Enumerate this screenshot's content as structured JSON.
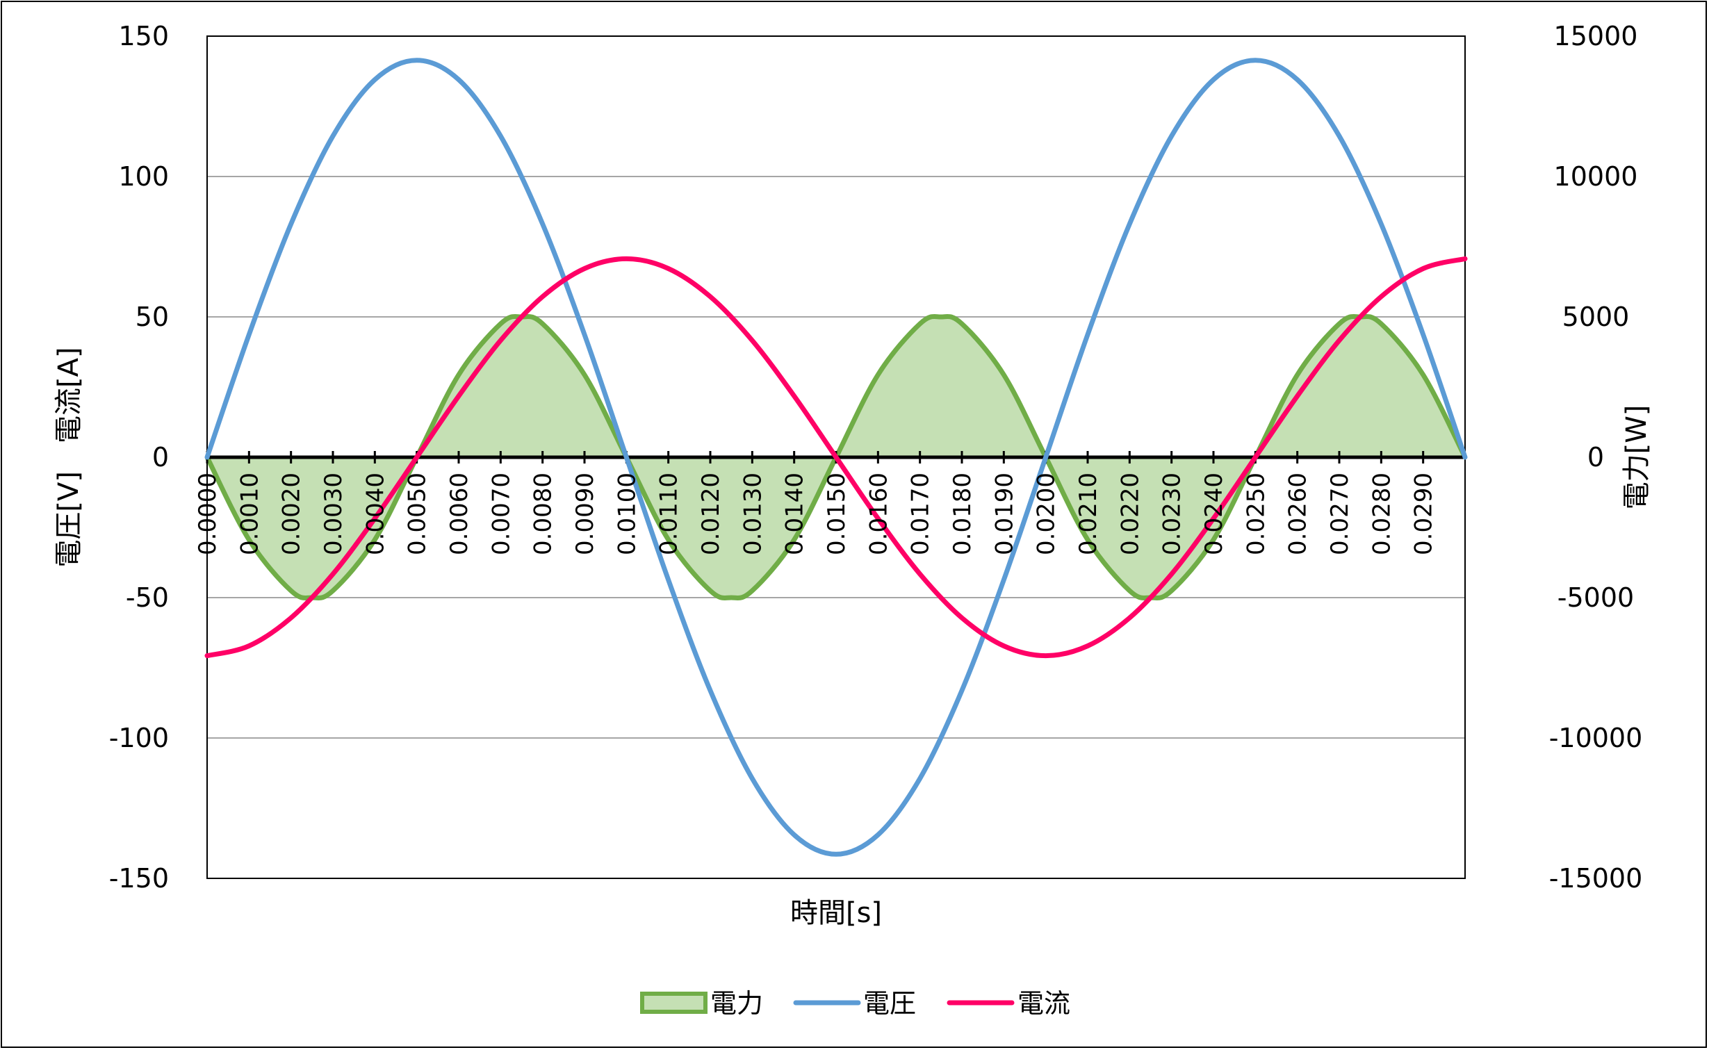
{
  "chart_data": {
    "type": "line",
    "xlabel": "時間[s]",
    "ylabel_left": "電圧[V]　電流[A]",
    "ylabel_right": "電力[W]",
    "y_left_range": [
      -150,
      150
    ],
    "y_left_ticks": [
      "150",
      "100",
      "50",
      "0",
      "-50",
      "-100",
      "-150"
    ],
    "y_right_range": [
      -15000,
      15000
    ],
    "y_right_ticks": [
      "15000",
      "10000",
      "5000",
      "0",
      "-5000",
      "-10000",
      "-15000"
    ],
    "x_range": [
      0,
      0.03
    ],
    "x_ticks": [
      "0.0000",
      "0.0010",
      "0.0020",
      "0.0030",
      "0.0040",
      "0.0050",
      "0.0060",
      "0.0070",
      "0.0080",
      "0.0090",
      "0.0100",
      "0.0110",
      "0.0120",
      "0.0130",
      "0.0140",
      "0.0150",
      "0.0160",
      "0.0170",
      "0.0180",
      "0.0190",
      "0.0200",
      "0.0210",
      "0.0220",
      "0.0230",
      "0.0240",
      "0.0250",
      "0.0260",
      "0.0270",
      "0.0280",
      "0.0290"
    ],
    "grid": true,
    "legend_position": "bottom",
    "colors": {
      "power": "#70AD47",
      "power_fill": "#C5E0B4",
      "voltage": "#5B9BD5",
      "current": "#FF0066"
    },
    "series": [
      {
        "name": "電力",
        "type": "area",
        "axis": "right",
        "x": [
          0,
          0.001,
          0.002,
          0.0025,
          0.003,
          0.004,
          0.005,
          0.006,
          0.007,
          0.0075,
          0.008,
          0.009,
          0.01,
          0.011,
          0.012,
          0.0125,
          0.013,
          0.014,
          0.015,
          0.016,
          0.017,
          0.0175,
          0.018,
          0.019,
          0.02,
          0.021,
          0.022,
          0.0225,
          0.023,
          0.024,
          0.025,
          0.026,
          0.027,
          0.0275,
          0.028,
          0.029,
          0.03
        ],
        "values": [
          0,
          -2939,
          -4755,
          -5000,
          -4755,
          -2939,
          0,
          2939,
          4755,
          5000,
          4755,
          2939,
          0,
          -2939,
          -4755,
          -5000,
          -4755,
          -2939,
          0,
          2939,
          4755,
          5000,
          4755,
          2939,
          0,
          -2939,
          -4755,
          -5000,
          -4755,
          -2939,
          0,
          2939,
          4755,
          5000,
          4755,
          2939,
          0
        ]
      },
      {
        "name": "電圧",
        "axis": "left",
        "x": [
          0,
          0.001,
          0.002,
          0.003,
          0.004,
          0.005,
          0.006,
          0.007,
          0.008,
          0.009,
          0.01,
          0.011,
          0.012,
          0.013,
          0.014,
          0.015,
          0.016,
          0.017,
          0.018,
          0.019,
          0.02,
          0.021,
          0.022,
          0.023,
          0.024,
          0.025,
          0.026,
          0.027,
          0.028,
          0.029,
          0.03
        ],
        "values": [
          0,
          43.7,
          83.1,
          114.4,
          134.5,
          141.4,
          134.5,
          114.4,
          83.1,
          43.7,
          0,
          -43.7,
          -83.1,
          -114.4,
          -134.5,
          -141.4,
          -134.5,
          -114.4,
          -83.1,
          -43.7,
          0,
          43.7,
          83.1,
          114.4,
          134.5,
          141.4,
          134.5,
          114.4,
          83.1,
          43.7,
          0
        ]
      },
      {
        "name": "電流",
        "axis": "left",
        "x": [
          0,
          0.001,
          0.002,
          0.003,
          0.004,
          0.005,
          0.006,
          0.007,
          0.008,
          0.009,
          0.01,
          0.011,
          0.012,
          0.013,
          0.014,
          0.015,
          0.016,
          0.017,
          0.018,
          0.019,
          0.02,
          0.021,
          0.022,
          0.023,
          0.024,
          0.025,
          0.026,
          0.027,
          0.028,
          0.029,
          0.03
        ],
        "values": [
          -70.7,
          -67.2,
          -57.2,
          -41.6,
          -21.8,
          0,
          21.8,
          41.6,
          57.2,
          67.2,
          70.7,
          67.2,
          57.2,
          41.6,
          21.8,
          0,
          -21.8,
          -41.6,
          -57.2,
          -67.2,
          -70.7,
          -67.2,
          -57.2,
          -41.6,
          -21.8,
          0,
          21.8,
          41.6,
          57.2,
          67.2,
          70.7
        ]
      }
    ]
  }
}
